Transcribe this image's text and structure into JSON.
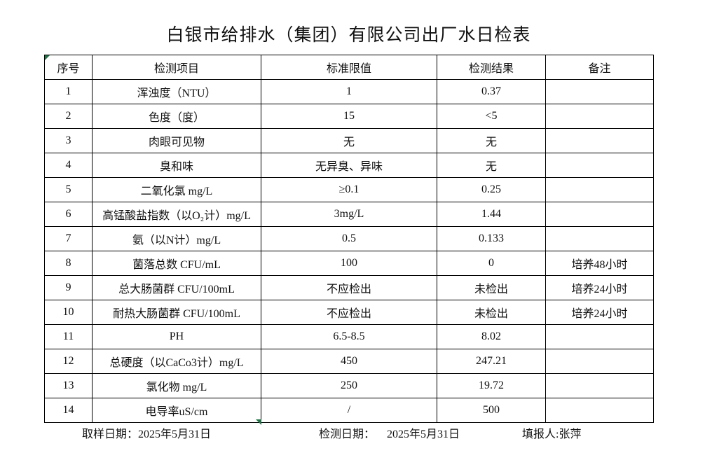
{
  "title": "白银市给排水（集团）有限公司出厂水日检表",
  "table": {
    "headers": [
      "序号",
      "检测项目",
      "标准限值",
      "检测结果",
      "备注"
    ],
    "rows": [
      {
        "no": "1",
        "item": "浑浊度（NTU）",
        "limit": "1",
        "result": "0.37",
        "remark": ""
      },
      {
        "no": "2",
        "item": "色度（度）",
        "limit": "15",
        "result": "<5",
        "remark": ""
      },
      {
        "no": "3",
        "item": "肉眼可见物",
        "limit": "无",
        "result": "无",
        "remark": ""
      },
      {
        "no": "4",
        "item": "臭和味",
        "limit": "无异臭、异味",
        "result": "无",
        "remark": ""
      },
      {
        "no": "5",
        "item": "二氧化氯 mg/L",
        "limit": "≥0.1",
        "result": "0.25",
        "remark": ""
      },
      {
        "no": "6",
        "item": "高锰酸盐指数（以O₂计）mg/L",
        "limit": "3mg/L",
        "result": "1.44",
        "remark": ""
      },
      {
        "no": "7",
        "item": "氨（以N计）mg/L",
        "limit": "0.5",
        "result": "0.133",
        "remark": ""
      },
      {
        "no": "8",
        "item": "菌落总数 CFU/mL",
        "limit": "100",
        "result": "0",
        "remark": "培养48小时"
      },
      {
        "no": "9",
        "item": "总大肠菌群 CFU/100mL",
        "limit": "不应检出",
        "result": "未检出",
        "remark": "培养24小时"
      },
      {
        "no": "10",
        "item": "耐热大肠菌群 CFU/100mL",
        "limit": "不应检出",
        "result": "未检出",
        "remark": "培养24小时"
      },
      {
        "no": "11",
        "item": "PH",
        "limit": "6.5-8.5",
        "result": "8.02",
        "remark": ""
      },
      {
        "no": "12",
        "item": "总硬度（以CaCo3计）mg/L",
        "limit": "450",
        "result": "247.21",
        "remark": ""
      },
      {
        "no": "13",
        "item": "氯化物 mg/L",
        "limit": "250",
        "result": "19.72",
        "remark": ""
      },
      {
        "no": "14",
        "item": "电导率uS/cm",
        "limit": "/",
        "result": "500",
        "remark": ""
      }
    ]
  },
  "footer": {
    "sampling": "取样日期：2025年5月31日",
    "testing_label": "检测日期：",
    "testing_date": "2025年5月31日",
    "reporter": "填报人:张萍"
  },
  "colors": {
    "background": "#ffffff",
    "border": "#000000",
    "text": "#111111",
    "indicator_green": "#217346"
  }
}
